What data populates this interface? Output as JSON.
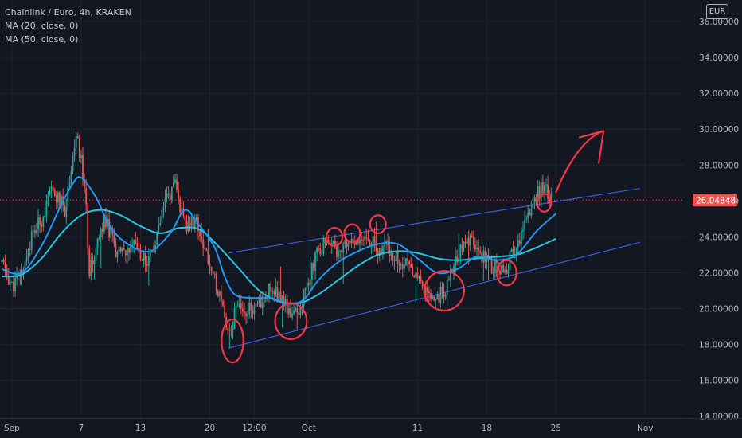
{
  "legend": {
    "symbol": "Chainlink / Euro, 4h, KRAKEN",
    "ma20": "MA (20, close, 0)",
    "ma50": "MA (50, close, 0)"
  },
  "currency": "EUR",
  "colors": {
    "background": "#131722",
    "up": "#26a69a",
    "down": "#ef5350",
    "ma20": "#2196f3",
    "ma50": "#26c6da",
    "channel": "#3d5bd9",
    "annotation": "#f23645",
    "price_tag": "#ef5350"
  },
  "chart_data": {
    "type": "candlestick",
    "title": "Chainlink / Euro, 4h, KRAKEN",
    "y_ticks": [
      14,
      16,
      18,
      20,
      22,
      24,
      26,
      28,
      30,
      32,
      34,
      36
    ],
    "y_tick_labels": [
      "14.00000",
      "16.00000",
      "18.00000",
      "20.00000",
      "22.00000",
      "24.00000",
      "26.00000",
      "28.00000",
      "30.00000",
      "32.00000",
      "34.00000",
      "36.00000"
    ],
    "ylim": [
      13.9,
      37.2
    ],
    "x_tick_labels": [
      "Sep",
      "7",
      "13",
      "20",
      "12:00",
      "Oct",
      "11",
      "18",
      "25",
      "Nov"
    ],
    "x_tick_positions_days": [
      0,
      7,
      13,
      20,
      24.5,
      30,
      41,
      48,
      55,
      64
    ],
    "x_axis_note": "days since Sep 1",
    "xlim": [
      -1.2,
      68
    ],
    "last_price": 26.04848,
    "last_price_label": "26.04848",
    "price_path_anchors": [
      [
        -1.0,
        22.6
      ],
      [
        0.0,
        21.2
      ],
      [
        1.0,
        22.0
      ],
      [
        2.0,
        24.0
      ],
      [
        3.0,
        25.0
      ],
      [
        4.0,
        26.5
      ],
      [
        4.8,
        26.0
      ],
      [
        5.4,
        25.5
      ],
      [
        6.0,
        28.0
      ],
      [
        6.5,
        29.5
      ],
      [
        7.0,
        28.2
      ],
      [
        7.4,
        26.5
      ],
      [
        7.8,
        22.0
      ],
      [
        8.5,
        23.5
      ],
      [
        9.5,
        25.0
      ],
      [
        10.5,
        23.2
      ],
      [
        11.5,
        23.0
      ],
      [
        12.5,
        23.5
      ],
      [
        13.5,
        22.5
      ],
      [
        14.5,
        23.5
      ],
      [
        15.5,
        26.0
      ],
      [
        16.5,
        26.8
      ],
      [
        17.5,
        24.5
      ],
      [
        18.5,
        25.0
      ],
      [
        19.5,
        23.5
      ],
      [
        20.3,
        22.0
      ],
      [
        21.0,
        20.5
      ],
      [
        21.6,
        19.3
      ],
      [
        22.1,
        18.5
      ],
      [
        22.7,
        20.5
      ],
      [
        23.5,
        20.0
      ],
      [
        24.5,
        19.8
      ],
      [
        25.5,
        20.8
      ],
      [
        26.5,
        21.2
      ],
      [
        27.5,
        20.2
      ],
      [
        28.5,
        19.5
      ],
      [
        29.3,
        20.2
      ],
      [
        30.2,
        22.0
      ],
      [
        31.0,
        23.2
      ],
      [
        32.0,
        23.8
      ],
      [
        33.0,
        23.2
      ],
      [
        34.0,
        24.0
      ],
      [
        35.0,
        23.5
      ],
      [
        36.0,
        24.0
      ],
      [
        37.0,
        23.3
      ],
      [
        38.0,
        23.5
      ],
      [
        39.0,
        22.8
      ],
      [
        40.0,
        22.5
      ],
      [
        41.0,
        21.8
      ],
      [
        42.0,
        20.6
      ],
      [
        43.0,
        20.5
      ],
      [
        44.0,
        21.3
      ],
      [
        45.0,
        22.8
      ],
      [
        46.0,
        24.0
      ],
      [
        47.0,
        23.2
      ],
      [
        48.0,
        22.6
      ],
      [
        49.0,
        22.2
      ],
      [
        50.0,
        22.4
      ],
      [
        51.0,
        23.5
      ],
      [
        52.0,
        25.0
      ],
      [
        53.0,
        26.3
      ],
      [
        53.8,
        26.9
      ],
      [
        54.5,
        26.05
      ]
    ],
    "ma20_path": [
      [
        -1.0,
        22.2
      ],
      [
        1.0,
        22.0
      ],
      [
        3.0,
        23.5
      ],
      [
        5.0,
        25.8
      ],
      [
        6.2,
        27.0
      ],
      [
        7.0,
        27.3
      ],
      [
        8.5,
        26.2
      ],
      [
        10.0,
        24.5
      ],
      [
        12.0,
        23.5
      ],
      [
        14.0,
        23.2
      ],
      [
        16.0,
        24.2
      ],
      [
        17.5,
        25.5
      ],
      [
        19.0,
        24.6
      ],
      [
        20.5,
        23.4
      ],
      [
        21.5,
        21.8
      ],
      [
        22.5,
        20.8
      ],
      [
        24.0,
        20.6
      ],
      [
        26.0,
        20.6
      ],
      [
        28.0,
        20.3
      ],
      [
        29.5,
        20.5
      ],
      [
        31.0,
        21.6
      ],
      [
        33.0,
        22.6
      ],
      [
        35.0,
        23.2
      ],
      [
        37.0,
        23.6
      ],
      [
        39.0,
        23.6
      ],
      [
        41.0,
        22.8
      ],
      [
        43.0,
        22.0
      ],
      [
        45.0,
        22.2
      ],
      [
        47.0,
        22.9
      ],
      [
        49.0,
        22.7
      ],
      [
        51.0,
        23.0
      ],
      [
        53.0,
        24.3
      ],
      [
        55.0,
        25.3
      ]
    ],
    "ma50_path": [
      [
        -1.0,
        21.8
      ],
      [
        1.0,
        21.9
      ],
      [
        3.0,
        22.8
      ],
      [
        5.0,
        24.2
      ],
      [
        7.0,
        25.2
      ],
      [
        9.0,
        25.5
      ],
      [
        11.0,
        25.2
      ],
      [
        13.0,
        24.6
      ],
      [
        15.0,
        24.2
      ],
      [
        17.0,
        24.5
      ],
      [
        19.0,
        24.4
      ],
      [
        21.0,
        23.4
      ],
      [
        23.0,
        22.2
      ],
      [
        25.0,
        21.0
      ],
      [
        27.0,
        20.4
      ],
      [
        29.0,
        20.3
      ],
      [
        31.0,
        20.8
      ],
      [
        33.0,
        21.6
      ],
      [
        35.0,
        22.4
      ],
      [
        37.0,
        23.0
      ],
      [
        39.0,
        23.2
      ],
      [
        41.0,
        23.1
      ],
      [
        43.0,
        22.8
      ],
      [
        45.0,
        22.7
      ],
      [
        47.0,
        22.8
      ],
      [
        49.0,
        22.9
      ],
      [
        51.0,
        23.0
      ],
      [
        53.0,
        23.4
      ],
      [
        55.0,
        23.9
      ]
    ],
    "channel_upper": [
      [
        21.9,
        23.1
      ],
      [
        63.5,
        26.7
      ]
    ],
    "channel_lower": [
      [
        21.9,
        17.8
      ],
      [
        63.5,
        23.7
      ]
    ],
    "annotation_circles": [
      [
        22.3,
        18.2,
        1.1,
        1.2
      ],
      [
        28.2,
        19.3,
        1.6,
        1.0
      ],
      [
        32.6,
        24.0,
        0.8,
        0.5
      ],
      [
        34.4,
        24.2,
        0.8,
        0.5
      ],
      [
        37.0,
        24.7,
        0.8,
        0.5
      ],
      [
        43.7,
        21.0,
        2.0,
        1.1
      ],
      [
        50.0,
        22.0,
        1.0,
        0.7
      ],
      [
        53.8,
        25.9,
        0.7,
        0.5
      ]
    ],
    "annotation_arrow": [
      [
        55.0,
        26.5
      ],
      [
        56.5,
        28.5
      ],
      [
        58.2,
        29.6
      ],
      [
        59.8,
        29.9
      ]
    ]
  }
}
